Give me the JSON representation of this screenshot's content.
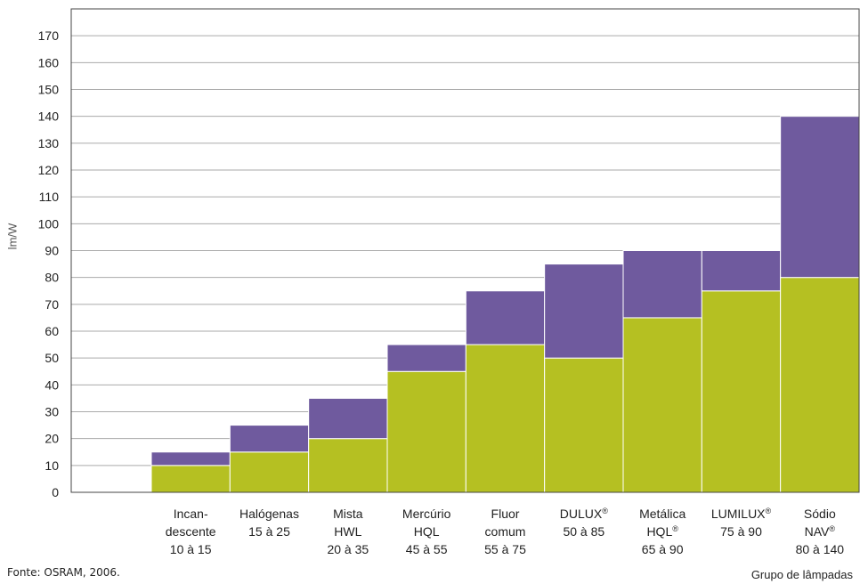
{
  "chart_data": {
    "type": "bar",
    "ylabel": "lm/W",
    "xlabel": "Grupo de lâmpadas",
    "ylim": [
      0,
      180
    ],
    "yticks": [
      0,
      10,
      20,
      30,
      40,
      50,
      60,
      70,
      80,
      90,
      100,
      110,
      120,
      130,
      140,
      150,
      160,
      170
    ],
    "grid": true,
    "colors": {
      "low": "#b5c022",
      "high": "#6f5a9e",
      "grid": "#aaaaaa"
    },
    "categories": [
      {
        "lines": [
          "Incan-",
          "descente",
          "10 à 15"
        ],
        "min": 10,
        "max": 15
      },
      {
        "lines": [
          "Halógenas",
          "15 à 25"
        ],
        "min": 15,
        "max": 25
      },
      {
        "lines": [
          "Mista",
          "HWL",
          "20 à 35"
        ],
        "min": 20,
        "max": 35
      },
      {
        "lines": [
          "Mercúrio",
          "HQL",
          "45 à 55"
        ],
        "min": 45,
        "max": 55
      },
      {
        "lines": [
          "Fluor",
          "comum",
          "55 à 75"
        ],
        "min": 55,
        "max": 75
      },
      {
        "lines": [
          "DULUX®",
          "50 à 85"
        ],
        "min": 50,
        "max": 85
      },
      {
        "lines": [
          "Metálica",
          "HQL®",
          "65 à 90"
        ],
        "min": 65,
        "max": 90
      },
      {
        "lines": [
          "LUMILUX®",
          "75 à 90"
        ],
        "min": 75,
        "max": 90
      },
      {
        "lines": [
          "Sódio",
          "NAV®",
          "80 à 140"
        ],
        "min": 80,
        "max": 140
      }
    ]
  },
  "source": "Fonte: OSRAM, 2006."
}
